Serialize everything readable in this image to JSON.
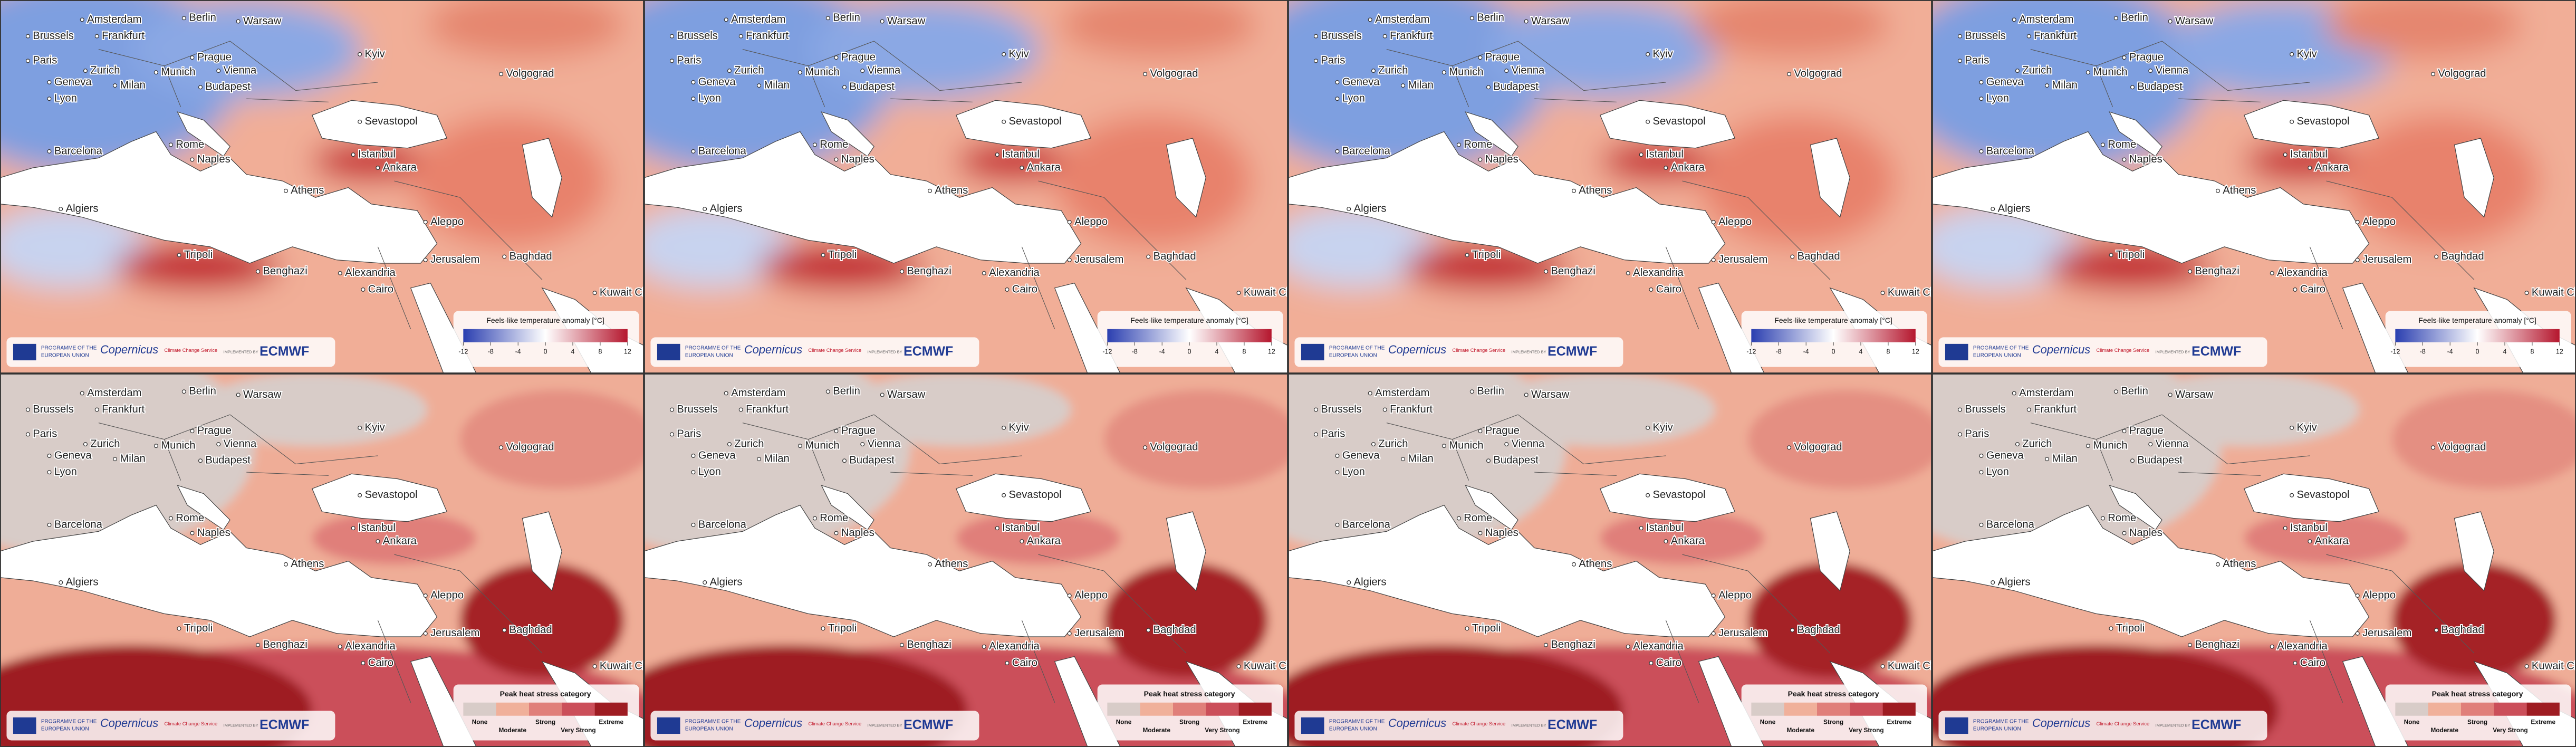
{
  "cities": [
    "Amsterdam",
    "Berlin",
    "Warsaw",
    "Brussels",
    "Frankfurt",
    "Paris",
    "Prague",
    "Kyiv",
    "Zurich",
    "Munich",
    "Vienna",
    "Geneva",
    "Milan",
    "Budapest",
    "Volgograd",
    "Lyon",
    "Sevastopol",
    "Barcelona",
    "Rome",
    "Naples",
    "Istanbul",
    "Ankara",
    "Athens",
    "Algiers",
    "Aleppo",
    "Tripoli",
    "Baghdad",
    "Benghazi",
    "Jerusalem",
    "Alexandria",
    "Cairo",
    "Kuwait City"
  ],
  "top_legend": {
    "title": "Feels-like temperature anomaly [°C]",
    "ticks": [
      -12,
      -8,
      -4,
      0,
      4,
      8,
      12
    ],
    "colors": [
      "#2b3fb0",
      "#ffffff",
      "#b5172e"
    ]
  },
  "bottom_legend": {
    "title": "Peak heat stress category",
    "categories": [
      {
        "label": "None",
        "color": "#d8ccc8"
      },
      {
        "label": "Moderate",
        "color": "#f0b09a"
      },
      {
        "label": "Strong",
        "color": "#e07f7a"
      },
      {
        "label": "Very Strong",
        "color": "#cb4f5a"
      },
      {
        "label": "Extreme",
        "color": "#9e1c22"
      }
    ]
  },
  "logos": {
    "programme_1": "PROGRAMME OF THE",
    "programme_2": "EUROPEAN UNION",
    "copernicus": "Copernicus",
    "service": "Climate Change Service",
    "implemented": "IMPLEMENTED BY",
    "ecmwf": "ECMWF"
  }
}
